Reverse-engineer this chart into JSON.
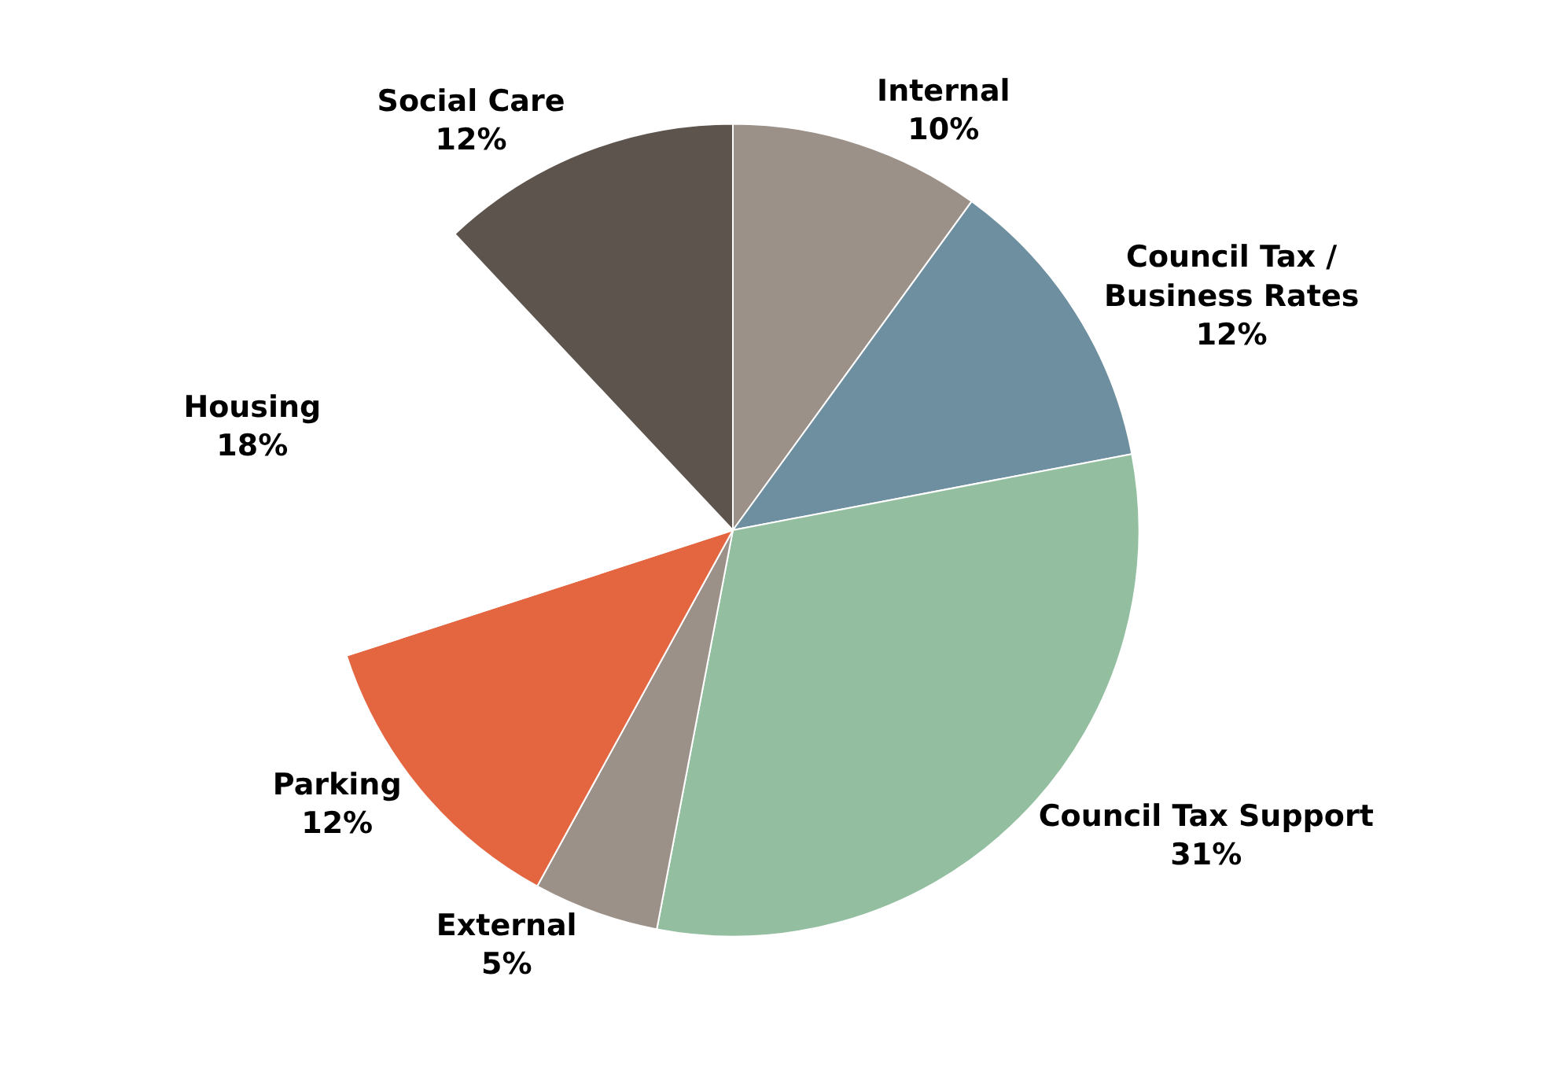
{
  "chart_data": {
    "type": "pie",
    "categories": [
      "Internal",
      "Council Tax / Business Rates",
      "Council Tax Support",
      "External",
      "Parking",
      "Housing",
      "Social Care"
    ],
    "values": [
      10,
      12,
      31,
      5,
      12,
      18,
      12
    ],
    "value_labels": [
      "10%",
      "12%",
      "31%",
      "5%",
      "12%",
      "18%",
      "12%"
    ],
    "colors": [
      "#9b9189",
      "#6e8fa0",
      "#93bfa0",
      "#9b9189",
      "#e36640",
      "#ffffff",
      "#5d544e"
    ],
    "legend": false
  }
}
